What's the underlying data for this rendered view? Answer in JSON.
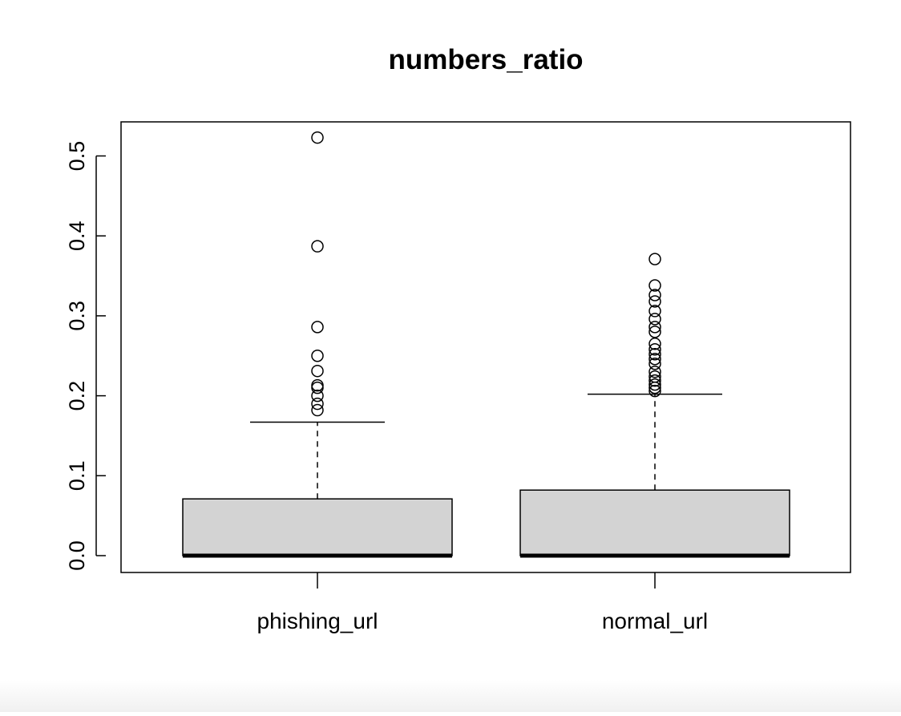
{
  "chart_data": {
    "type": "boxplot",
    "title": "numbers_ratio",
    "xlabel": "",
    "ylabel": "",
    "ylim": [
      -0.02,
      0.545
    ],
    "yticks": [
      0.0,
      0.1,
      0.2,
      0.3,
      0.4,
      0.5
    ],
    "ytick_labels": [
      "0.0",
      "0.1",
      "0.2",
      "0.3",
      "0.4",
      "0.5"
    ],
    "categories": [
      "phishing_url",
      "normal_url"
    ],
    "box_fill": "#d3d3d3",
    "grid": false,
    "boxes": [
      {
        "name": "phishing_url",
        "min": 0.0,
        "q1": 0.0,
        "median": 0.0,
        "q3": 0.071,
        "whisker_high": 0.167,
        "outliers": [
          0.182,
          0.19,
          0.2,
          0.21,
          0.213,
          0.231,
          0.25,
          0.286,
          0.387,
          0.523
        ]
      },
      {
        "name": "normal_url",
        "min": 0.0,
        "q1": 0.0,
        "median": 0.0,
        "q3": 0.082,
        "whisker_high": 0.202,
        "outliers": [
          0.206,
          0.21,
          0.214,
          0.219,
          0.224,
          0.23,
          0.24,
          0.246,
          0.252,
          0.258,
          0.265,
          0.28,
          0.286,
          0.296,
          0.306,
          0.318,
          0.326,
          0.338,
          0.371
        ]
      }
    ]
  }
}
